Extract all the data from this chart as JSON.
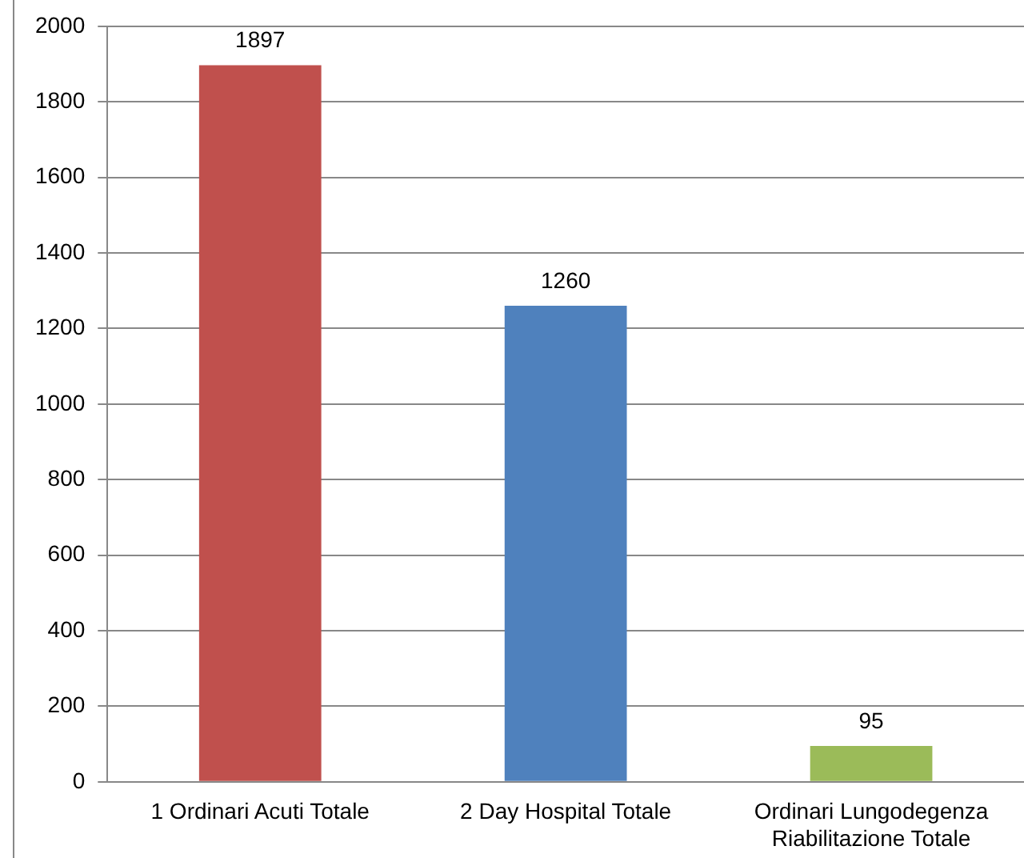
{
  "chart_data": {
    "type": "bar",
    "categories": [
      "1 Ordinari Acuti Totale",
      "2 Day Hospital Totale",
      "Ordinari Lungodegenza Riabilitazione Totale"
    ],
    "values": [
      1897,
      1260,
      95
    ],
    "colors": [
      "#c0504d",
      "#4f81bd",
      "#9bbb59"
    ],
    "ylim": [
      0,
      2000
    ],
    "yticks": [
      0,
      200,
      400,
      600,
      800,
      1000,
      1200,
      1400,
      1600,
      1800,
      2000
    ],
    "grid": "y",
    "legend": false,
    "data_labels": true
  }
}
